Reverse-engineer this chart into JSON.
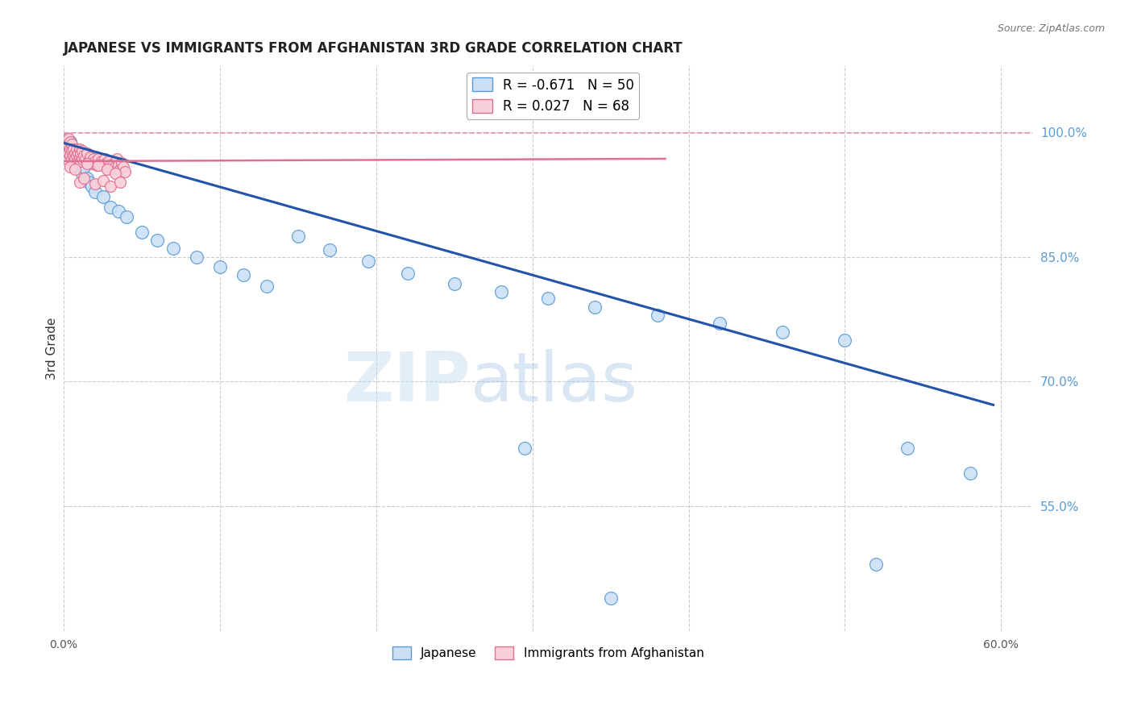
{
  "title": "JAPANESE VS IMMIGRANTS FROM AFGHANISTAN 3RD GRADE CORRELATION CHART",
  "source": "Source: ZipAtlas.com",
  "ylabel": "3rd Grade",
  "xlim": [
    0.0,
    0.62
  ],
  "ylim": [
    0.4,
    1.08
  ],
  "xticks": [
    0.0,
    0.1,
    0.2,
    0.3,
    0.4,
    0.5,
    0.6
  ],
  "xticklabels": [
    "0.0%",
    "",
    "",
    "",
    "",
    "",
    "60.0%"
  ],
  "ytick_positions_right": [
    1.0,
    0.85,
    0.7,
    0.55
  ],
  "ytick_labels_right": [
    "100.0%",
    "85.0%",
    "70.0%",
    "55.0%"
  ],
  "grid_color": "#cccccc",
  "background_color": "#ffffff",
  "japanese_color": "#cce0f5",
  "japanese_edge_color": "#5b9bd5",
  "afghanistan_color": "#f9d0da",
  "afghanistan_edge_color": "#e07090",
  "blue_line_color": "#2255aa",
  "pink_line_color": "#e07090",
  "legend_R1": "-0.671",
  "legend_N1": "50",
  "legend_R2": "0.027",
  "legend_N2": "68",
  "watermark_zip": "ZIP",
  "watermark_atlas": "atlas",
  "hline_y": 0.999,
  "hline_color": "#e07090",
  "blue_line_x": [
    0.0,
    0.595
  ],
  "blue_line_y": [
    0.987,
    0.672
  ],
  "pink_line_x": [
    0.0,
    0.385
  ],
  "pink_line_y": [
    0.965,
    0.968
  ],
  "japanese_x": [
    0.001,
    0.002,
    0.003,
    0.003,
    0.004,
    0.004,
    0.005,
    0.005,
    0.006,
    0.007,
    0.007,
    0.008,
    0.009,
    0.01,
    0.01,
    0.011,
    0.012,
    0.013,
    0.015,
    0.016,
    0.018,
    0.02,
    0.025,
    0.03,
    0.035,
    0.04,
    0.05,
    0.06,
    0.07,
    0.085,
    0.1,
    0.115,
    0.13,
    0.15,
    0.17,
    0.195,
    0.22,
    0.25,
    0.28,
    0.31,
    0.34,
    0.38,
    0.42,
    0.46,
    0.5,
    0.54,
    0.58,
    0.295,
    0.52,
    0.35
  ],
  "japanese_y": [
    0.99,
    0.985,
    0.982,
    0.978,
    0.975,
    0.988,
    0.97,
    0.965,
    0.975,
    0.972,
    0.968,
    0.96,
    0.975,
    0.968,
    0.955,
    0.962,
    0.95,
    0.958,
    0.945,
    0.94,
    0.935,
    0.928,
    0.922,
    0.91,
    0.905,
    0.898,
    0.88,
    0.87,
    0.86,
    0.85,
    0.838,
    0.828,
    0.815,
    0.875,
    0.858,
    0.845,
    0.83,
    0.818,
    0.808,
    0.8,
    0.79,
    0.78,
    0.77,
    0.76,
    0.75,
    0.62,
    0.59,
    0.62,
    0.48,
    0.44
  ],
  "afghanistan_x": [
    0.001,
    0.001,
    0.002,
    0.002,
    0.002,
    0.003,
    0.003,
    0.003,
    0.004,
    0.004,
    0.004,
    0.005,
    0.005,
    0.005,
    0.006,
    0.006,
    0.006,
    0.007,
    0.007,
    0.008,
    0.008,
    0.009,
    0.009,
    0.01,
    0.01,
    0.011,
    0.011,
    0.012,
    0.012,
    0.013,
    0.014,
    0.015,
    0.016,
    0.017,
    0.018,
    0.019,
    0.02,
    0.021,
    0.022,
    0.023,
    0.024,
    0.025,
    0.026,
    0.027,
    0.028,
    0.029,
    0.03,
    0.031,
    0.032,
    0.033,
    0.034,
    0.035,
    0.036,
    0.037,
    0.038,
    0.039,
    0.015,
    0.022,
    0.028,
    0.033,
    0.004,
    0.007,
    0.01,
    0.013,
    0.02,
    0.025,
    0.03,
    0.036
  ],
  "afghanistan_y": [
    0.99,
    0.98,
    0.985,
    0.975,
    0.968,
    0.992,
    0.985,
    0.975,
    0.988,
    0.98,
    0.972,
    0.985,
    0.978,
    0.968,
    0.98,
    0.972,
    0.963,
    0.975,
    0.968,
    0.98,
    0.972,
    0.975,
    0.965,
    0.98,
    0.97,
    0.975,
    0.965,
    0.978,
    0.968,
    0.972,
    0.968,
    0.975,
    0.965,
    0.97,
    0.962,
    0.968,
    0.965,
    0.96,
    0.968,
    0.962,
    0.965,
    0.96,
    0.968,
    0.962,
    0.958,
    0.965,
    0.96,
    0.956,
    0.962,
    0.958,
    0.968,
    0.96,
    0.955,
    0.963,
    0.958,
    0.952,
    0.962,
    0.96,
    0.955,
    0.95,
    0.958,
    0.955,
    0.94,
    0.945,
    0.938,
    0.942,
    0.935,
    0.94
  ],
  "marker_size_japanese": 130,
  "marker_size_afghanistan": 100
}
